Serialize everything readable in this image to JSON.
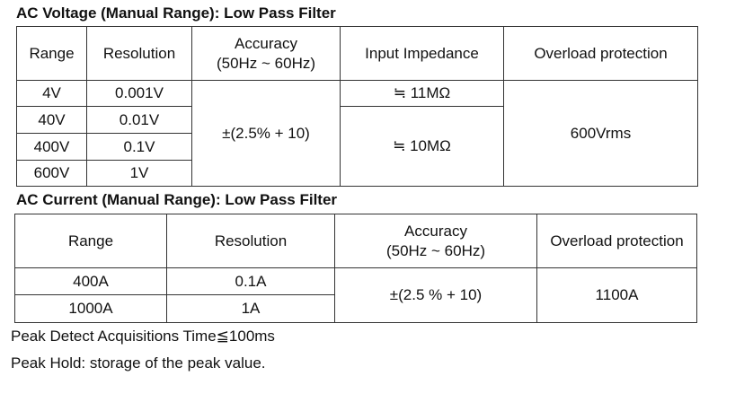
{
  "ac_voltage": {
    "title": "AC Voltage (Manual Range): Low Pass Filter",
    "headers": {
      "range": "Range",
      "resolution": "Resolution",
      "accuracy": "Accuracy",
      "accuracy_freq": "(50Hz ~ 60Hz)",
      "input_impedance": "Input Impedance",
      "overload": "Overload protection"
    },
    "rows": [
      {
        "range": "4V",
        "resolution": "0.001V"
      },
      {
        "range": "40V",
        "resolution": "0.01V"
      },
      {
        "range": "400V",
        "resolution": "0.1V"
      },
      {
        "range": "600V",
        "resolution": "1V"
      }
    ],
    "accuracy": "±(2.5% + 10)",
    "impedance_4v": "≒ 11MΩ",
    "impedance_other": "≒ 10MΩ",
    "overload": "600Vrms"
  },
  "ac_current": {
    "title": "AC Current (Manual Range): Low Pass Filter",
    "headers": {
      "range": "Range",
      "resolution": "Resolution",
      "accuracy": "Accuracy",
      "accuracy_freq": "(50Hz ~ 60Hz)",
      "overload": "Overload protection"
    },
    "rows": [
      {
        "range": "400A",
        "resolution": "0.1A"
      },
      {
        "range": "1000A",
        "resolution": "1A"
      }
    ],
    "accuracy": "±(2.5 % + 10)",
    "overload": "1100A"
  },
  "notes": {
    "peak_detect": "Peak Detect Acquisitions Time≦100ms",
    "peak_hold": "Peak Hold: storage of the peak value."
  }
}
